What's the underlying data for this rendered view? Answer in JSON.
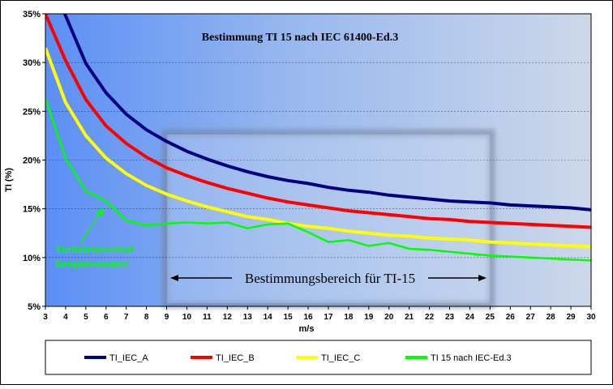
{
  "chart_data": {
    "type": "line",
    "title": "Bestimmung  TI 15 nach IEC 61400-Ed.3",
    "xlabel": "m/s",
    "ylabel": "TI (%)",
    "x": [
      3,
      4,
      5,
      6,
      7,
      8,
      9,
      10,
      11,
      12,
      13,
      14,
      15,
      16,
      17,
      18,
      19,
      20,
      21,
      22,
      23,
      24,
      25,
      26,
      27,
      28,
      29,
      30
    ],
    "xlim": [
      3,
      30
    ],
    "ylim": [
      5,
      35
    ],
    "yticks": [
      "5%",
      "10%",
      "15%",
      "20%",
      "25%",
      "30%",
      "35%"
    ],
    "grid": "horizontal dashed",
    "legend_position": "bottom",
    "series": [
      {
        "name": "TI_IEC_A",
        "color": "#000080",
        "values": [
          39.0,
          34.8,
          29.9,
          26.9,
          24.7,
          23.1,
          21.9,
          20.9,
          20.1,
          19.4,
          18.8,
          18.3,
          17.9,
          17.6,
          17.2,
          16.9,
          16.7,
          16.4,
          16.2,
          16.0,
          15.8,
          15.7,
          15.6,
          15.4,
          15.3,
          15.2,
          15.1,
          14.9
        ]
      },
      {
        "name": "TI_IEC_B",
        "color": "#ff0000",
        "values": [
          35.0,
          30.2,
          26.2,
          23.5,
          21.7,
          20.3,
          19.2,
          18.4,
          17.7,
          17.1,
          16.6,
          16.1,
          15.7,
          15.4,
          15.1,
          14.8,
          14.6,
          14.4,
          14.2,
          14.0,
          13.9,
          13.7,
          13.6,
          13.5,
          13.4,
          13.3,
          13.2,
          13.1
        ]
      },
      {
        "name": "TI_IEC_C",
        "color": "#ffff00",
        "values": [
          31.5,
          25.9,
          22.5,
          20.2,
          18.6,
          17.4,
          16.5,
          15.8,
          15.2,
          14.7,
          14.2,
          13.9,
          13.5,
          13.2,
          13.0,
          12.7,
          12.5,
          12.3,
          12.2,
          12.0,
          11.9,
          11.8,
          11.6,
          11.5,
          11.4,
          11.3,
          11.2,
          11.1
        ]
      },
      {
        "name": "TI 15 nach IEC-Ed.3",
        "color": "#00ff00",
        "values": [
          26.3,
          20.2,
          16.8,
          15.8,
          13.8,
          13.3,
          13.5,
          13.6,
          13.5,
          13.6,
          13.0,
          13.4,
          13.5,
          12.6,
          11.6,
          11.8,
          11.2,
          11.5,
          10.9,
          10.8,
          10.6,
          10.4,
          10.2,
          10.1,
          10.0,
          9.9,
          9.8,
          9.7
        ]
      }
    ],
    "annotations": {
      "turbulence_label_line1": "Turbulenzverlauf",
      "turbulence_label_line2": "Beispielstandort",
      "range_label": "Bestimmungsbereich für TI-15",
      "range_x": [
        9,
        25
      ]
    }
  }
}
